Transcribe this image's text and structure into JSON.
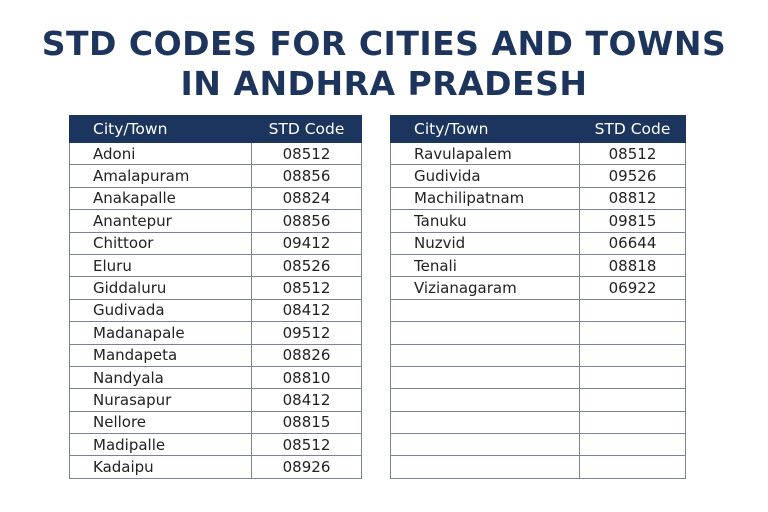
{
  "title_line1": "STD CODES FOR CITIES AND TOWNS",
  "title_line2": "IN ANDHRA PRADESH",
  "colors": {
    "header": "#1c355e",
    "title": "#1d355c"
  },
  "headers": {
    "city": "City/Town",
    "code": "STD Code"
  },
  "left_table": [
    {
      "city": "Adoni",
      "code": "08512"
    },
    {
      "city": "Amalapuram",
      "code": "08856"
    },
    {
      "city": "Anakapalle",
      "code": "08824"
    },
    {
      "city": "Anantepur",
      "code": "08856"
    },
    {
      "city": "Chittoor",
      "code": "09412"
    },
    {
      "city": "Eluru",
      "code": "08526"
    },
    {
      "city": "Giddaluru",
      "code": "08512"
    },
    {
      "city": "Gudivada",
      "code": "08412"
    },
    {
      "city": "Madanapale",
      "code": "09512"
    },
    {
      "city": "Mandapeta",
      "code": "08826"
    },
    {
      "city": "Nandyala",
      "code": "08810"
    },
    {
      "city": "Nurasapur",
      "code": "08412"
    },
    {
      "city": "Nellore",
      "code": "08815"
    },
    {
      "city": "Madipalle",
      "code": "08512"
    },
    {
      "city": "Kadaipu",
      "code": "08926"
    }
  ],
  "right_table": [
    {
      "city": "Ravulapalem",
      "code": "08512"
    },
    {
      "city": "Gudivida",
      "code": "09526"
    },
    {
      "city": "Machilipatnam",
      "code": "08812"
    },
    {
      "city": "Tanuku",
      "code": "09815"
    },
    {
      "city": "Nuzvid",
      "code": "06644"
    },
    {
      "city": "Tenali",
      "code": "08818"
    },
    {
      "city": "Vizianagaram",
      "code": "06922"
    },
    {
      "city": "",
      "code": ""
    },
    {
      "city": "",
      "code": ""
    },
    {
      "city": "",
      "code": ""
    },
    {
      "city": "",
      "code": ""
    },
    {
      "city": "",
      "code": ""
    },
    {
      "city": "",
      "code": ""
    },
    {
      "city": "",
      "code": ""
    },
    {
      "city": "",
      "code": ""
    }
  ]
}
